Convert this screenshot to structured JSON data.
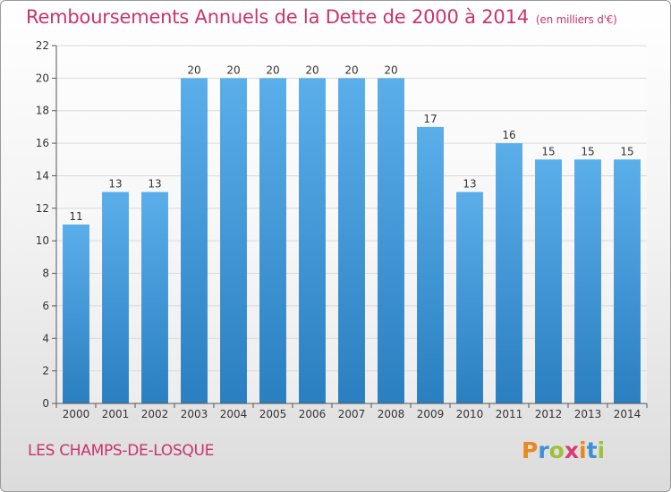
{
  "header": {
    "title": "Remboursements Annuels de la Dette de 2000 à 2014",
    "subtitle": "(en milliers d'€)"
  },
  "footer": {
    "location": "LES CHAMPS-DE-LOSQUE",
    "brand": "Proxiti",
    "brand_letters": [
      {
        "char": "P",
        "color": "#e8891d"
      },
      {
        "char": "r",
        "color": "#3f8fd6"
      },
      {
        "char": "o",
        "color": "#9dc23a"
      },
      {
        "char": "x",
        "color": "#d83b75"
      },
      {
        "char": "i",
        "color": "#e8891d"
      },
      {
        "char": "t",
        "color": "#3f8fd6"
      },
      {
        "char": "i",
        "color": "#9dc23a"
      }
    ]
  },
  "colors": {
    "bar_light": "#5aaeea",
    "bar_dark": "#2a7fc0",
    "accent": "#c8346b",
    "grid": "#d9d9d9"
  },
  "chart_data": {
    "type": "bar",
    "title": "Remboursements Annuels de la Dette de 2000 à 2014",
    "ylabel": "(en milliers d'€)",
    "xlabel": "",
    "categories": [
      "2000",
      "2001",
      "2002",
      "2003",
      "2004",
      "2005",
      "2006",
      "2007",
      "2008",
      "2009",
      "2010",
      "2011",
      "2012",
      "2013",
      "2014"
    ],
    "values": [
      11,
      13,
      13,
      20,
      20,
      20,
      20,
      20,
      20,
      17,
      13,
      16,
      15,
      15,
      15
    ],
    "ylim": [
      0,
      22
    ],
    "yticks": [
      0,
      2,
      4,
      6,
      8,
      10,
      12,
      14,
      16,
      18,
      20,
      22
    ],
    "grid": true
  }
}
